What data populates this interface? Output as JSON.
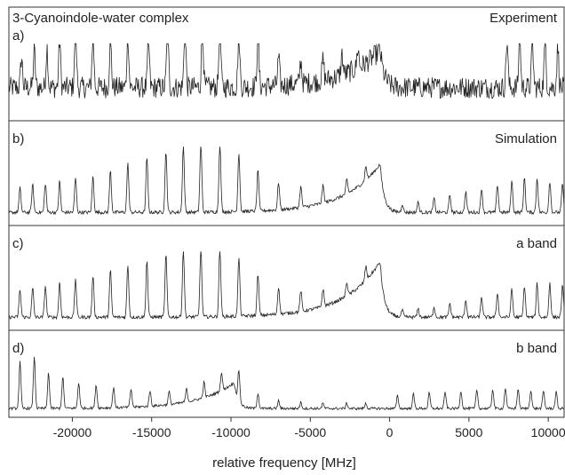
{
  "chart_data": {
    "type": "line",
    "title": "3-Cyanoindole-water complex",
    "xlabel": "relative frequency [MHz]",
    "ylabel": "",
    "xlim": [
      -24000,
      11000
    ],
    "x_ticks": [
      -20000,
      -15000,
      -10000,
      -5000,
      0,
      5000,
      10000
    ],
    "x_tick_labels": [
      "-20000",
      "-15000",
      "-10000",
      "-5000",
      "0",
      "5000",
      "10000"
    ],
    "grid": false,
    "panels": [
      {
        "id": "a",
        "label": "a)",
        "tag": "Experiment",
        "series": [
          {
            "style": "noisy",
            "noise": 0.16,
            "baseline": 0.4,
            "peaks_x": [
              -23200,
              -22400,
              -21600,
              -20800,
              -19800,
              -18700,
              -17600,
              -16500,
              -15200,
              -14000,
              -12900,
              -11800,
              -10700,
              -9500,
              -8300,
              -7000,
              -5600,
              -4200,
              -3000,
              -2000,
              7400,
              8200,
              9000,
              9800,
              10600
            ],
            "peaks_h": [
              0.45,
              0.55,
              0.6,
              0.7,
              1.0,
              0.85,
              0.75,
              0.8,
              0.7,
              0.95,
              0.95,
              0.95,
              0.95,
              0.85,
              0.8,
              0.4,
              0.35,
              0.3,
              0.3,
              0.3,
              0.7,
              0.75,
              0.65,
              0.7,
              0.6
            ],
            "bump_center": -600,
            "bump_height": 0.55
          }
        ]
      },
      {
        "id": "b",
        "label": "b)",
        "tag": "Simulation",
        "series": [
          {
            "style": "clean",
            "baseline": 0.1,
            "peaks_x": [
              -23300,
              -22500,
              -21700,
              -20800,
              -19800,
              -18700,
              -17600,
              -16500,
              -15300,
              -14100,
              -13000,
              -11900,
              -10700,
              -9500,
              -8300,
              -7000,
              -5600,
              -4200,
              -2700,
              -1500,
              800,
              1800,
              2800,
              3800,
              4800,
              5800,
              6800,
              7700,
              8500,
              9300,
              10100,
              10900
            ],
            "peaks_h": [
              0.35,
              0.4,
              0.42,
              0.45,
              0.5,
              0.52,
              0.6,
              0.7,
              0.8,
              0.88,
              0.95,
              1.0,
              1.0,
              0.85,
              0.6,
              0.4,
              0.3,
              0.25,
              0.2,
              0.2,
              0.12,
              0.15,
              0.2,
              0.25,
              0.3,
              0.35,
              0.4,
              0.45,
              0.5,
              0.5,
              0.45,
              0.4
            ],
            "bump_center": -600,
            "bump_height": 0.7
          }
        ]
      },
      {
        "id": "c",
        "label": "c)",
        "tag": "a band",
        "series": [
          {
            "style": "clean",
            "baseline": 0.1,
            "peaks_x": [
              -23300,
              -22500,
              -21700,
              -20800,
              -19800,
              -18700,
              -17600,
              -16500,
              -15300,
              -14100,
              -13000,
              -11900,
              -10700,
              -9500,
              -8300,
              -7000,
              -5600,
              -4200,
              -2700,
              -1500,
              800,
              1800,
              2800,
              3800,
              4800,
              5800,
              6800,
              7700,
              8500,
              9300,
              10100,
              10900
            ],
            "peaks_h": [
              0.4,
              0.42,
              0.45,
              0.5,
              0.55,
              0.6,
              0.68,
              0.75,
              0.82,
              0.9,
              0.97,
              1.0,
              1.0,
              0.85,
              0.6,
              0.4,
              0.3,
              0.25,
              0.2,
              0.2,
              0.1,
              0.12,
              0.15,
              0.2,
              0.25,
              0.3,
              0.35,
              0.4,
              0.45,
              0.5,
              0.5,
              0.45
            ],
            "bump_center": -600,
            "bump_height": 0.8
          }
        ]
      },
      {
        "id": "d",
        "label": "d)",
        "tag": "b band",
        "series": [
          {
            "style": "clean",
            "baseline": 0.05,
            "peaks_x": [
              -23300,
              -22400,
              -21500,
              -20600,
              -19600,
              -18500,
              -17400,
              -16300,
              -15100,
              -13900,
              -12800,
              -11700,
              -10600,
              -9500,
              -8300,
              -7000,
              -5600,
              -4200,
              -2700,
              -1500,
              500,
              1500,
              2500,
              3500,
              4500,
              5500,
              6500,
              7300,
              8100,
              8900,
              9700,
              10500
            ],
            "peaks_h": [
              0.9,
              1.0,
              0.7,
              0.6,
              0.5,
              0.45,
              0.4,
              0.35,
              0.3,
              0.25,
              0.25,
              0.3,
              0.35,
              0.6,
              0.3,
              0.15,
              0.12,
              0.1,
              0.1,
              0.1,
              0.25,
              0.28,
              0.3,
              0.32,
              0.34,
              0.36,
              0.38,
              0.4,
              0.38,
              0.36,
              0.34,
              0.32
            ],
            "bump_center": -9800,
            "bump_height": 0.5
          }
        ]
      }
    ]
  }
}
